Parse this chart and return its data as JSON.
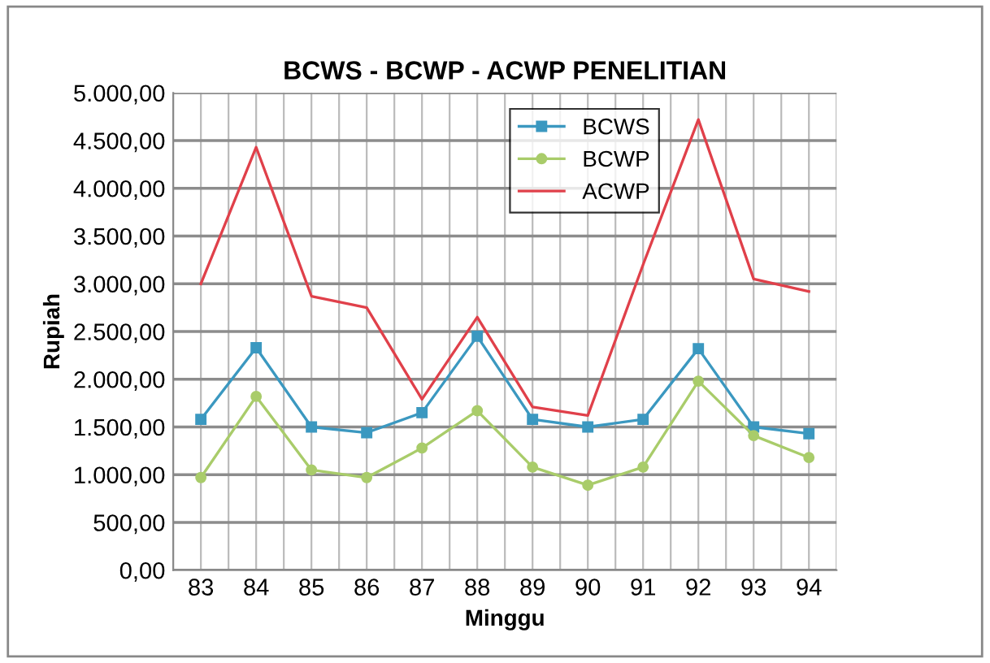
{
  "chart_data": {
    "type": "line",
    "title": "BCWS - BCWP - ACWP PENELITIAN",
    "xlabel": "Minggu",
    "ylabel": "Rupiah",
    "categories": [
      "83",
      "84",
      "85",
      "86",
      "87",
      "88",
      "89",
      "90",
      "91",
      "92",
      "93",
      "94"
    ],
    "series": [
      {
        "name": "BCWS",
        "color": "#3b98c0",
        "marker": "square",
        "values": [
          1580,
          2330,
          1500,
          1440,
          1650,
          2450,
          1580,
          1500,
          1580,
          2320,
          1500,
          1430
        ]
      },
      {
        "name": "BCWP",
        "color": "#a9cc6a",
        "marker": "circle",
        "values": [
          970,
          1820,
          1050,
          970,
          1280,
          1670,
          1080,
          890,
          1080,
          1980,
          1410,
          1180
        ]
      },
      {
        "name": "ACWP",
        "color": "#e0404a",
        "marker": "none",
        "values": [
          3000,
          4430,
          2870,
          2750,
          1790,
          2650,
          1710,
          1620,
          3200,
          4720,
          3050,
          2920
        ]
      }
    ],
    "ylim": [
      0,
      5000
    ],
    "yticks": [
      {
        "value": 0,
        "label": "0,00"
      },
      {
        "value": 500,
        "label": "500,00"
      },
      {
        "value": 1000,
        "label": "1.000,00"
      },
      {
        "value": 1500,
        "label": "1.500,00"
      },
      {
        "value": 2000,
        "label": "2.000,00"
      },
      {
        "value": 2500,
        "label": "2.500,00"
      },
      {
        "value": 3000,
        "label": "3.000,00"
      },
      {
        "value": 3500,
        "label": "3.500,00"
      },
      {
        "value": 4000,
        "label": "4.000,00"
      },
      {
        "value": 4500,
        "label": "4.500,00"
      },
      {
        "value": 5000,
        "label": "5.000,00"
      }
    ],
    "grid": true,
    "legend": "top",
    "line_style": "solid"
  }
}
